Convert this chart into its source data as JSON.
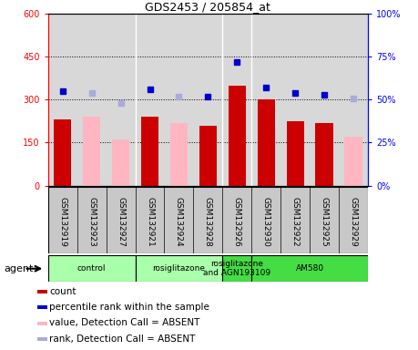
{
  "title": "GDS2453 / 205854_at",
  "samples": [
    "GSM132919",
    "GSM132923",
    "GSM132927",
    "GSM132921",
    "GSM132924",
    "GSM132928",
    "GSM132926",
    "GSM132930",
    "GSM132922",
    "GSM132925",
    "GSM132929"
  ],
  "counts": [
    230,
    null,
    null,
    240,
    null,
    210,
    350,
    300,
    225,
    220,
    null
  ],
  "count_absent": [
    null,
    240,
    160,
    null,
    220,
    null,
    null,
    null,
    null,
    null,
    170
  ],
  "percentile_ranks": [
    55,
    null,
    null,
    56,
    null,
    52,
    72,
    57,
    54,
    53,
    null
  ],
  "rank_absent": [
    null,
    54,
    48,
    null,
    52,
    null,
    null,
    null,
    null,
    null,
    51
  ],
  "bar_color_present": "#CC0000",
  "bar_color_absent": "#FFB6C1",
  "dot_color_present": "#0000CC",
  "dot_color_absent": "#AAAADD",
  "ylim_left": [
    0,
    600
  ],
  "ylim_right": [
    0,
    100
  ],
  "yticks_left": [
    0,
    150,
    300,
    450,
    600
  ],
  "yticks_right": [
    0,
    25,
    50,
    75,
    100
  ],
  "ytick_labels_left": [
    "0",
    "150",
    "300",
    "450",
    "600"
  ],
  "ytick_labels_right": [
    "0%",
    "25%",
    "50%",
    "75%",
    "100%"
  ],
  "group_defs": [
    {
      "gstart": 0,
      "gend": 2,
      "color": "#AAFFAA",
      "label": "control"
    },
    {
      "gstart": 3,
      "gend": 5,
      "color": "#AAFFAA",
      "label": "rosiglitazone"
    },
    {
      "gstart": 6,
      "gend": 6,
      "color": "#44DD44",
      "label": "rosiglitazone\nand AGN193109"
    },
    {
      "gstart": 7,
      "gend": 10,
      "color": "#44DD44",
      "label": "AM580"
    }
  ],
  "legend_items": [
    {
      "label": "count",
      "color": "#CC0000"
    },
    {
      "label": "percentile rank within the sample",
      "color": "#0000CC"
    },
    {
      "label": "value, Detection Call = ABSENT",
      "color": "#FFB6C1"
    },
    {
      "label": "rank, Detection Call = ABSENT",
      "color": "#AAAADD"
    }
  ],
  "plot_bg_color": "#D8D8D8",
  "xtick_bg_color": "#C8C8C8"
}
